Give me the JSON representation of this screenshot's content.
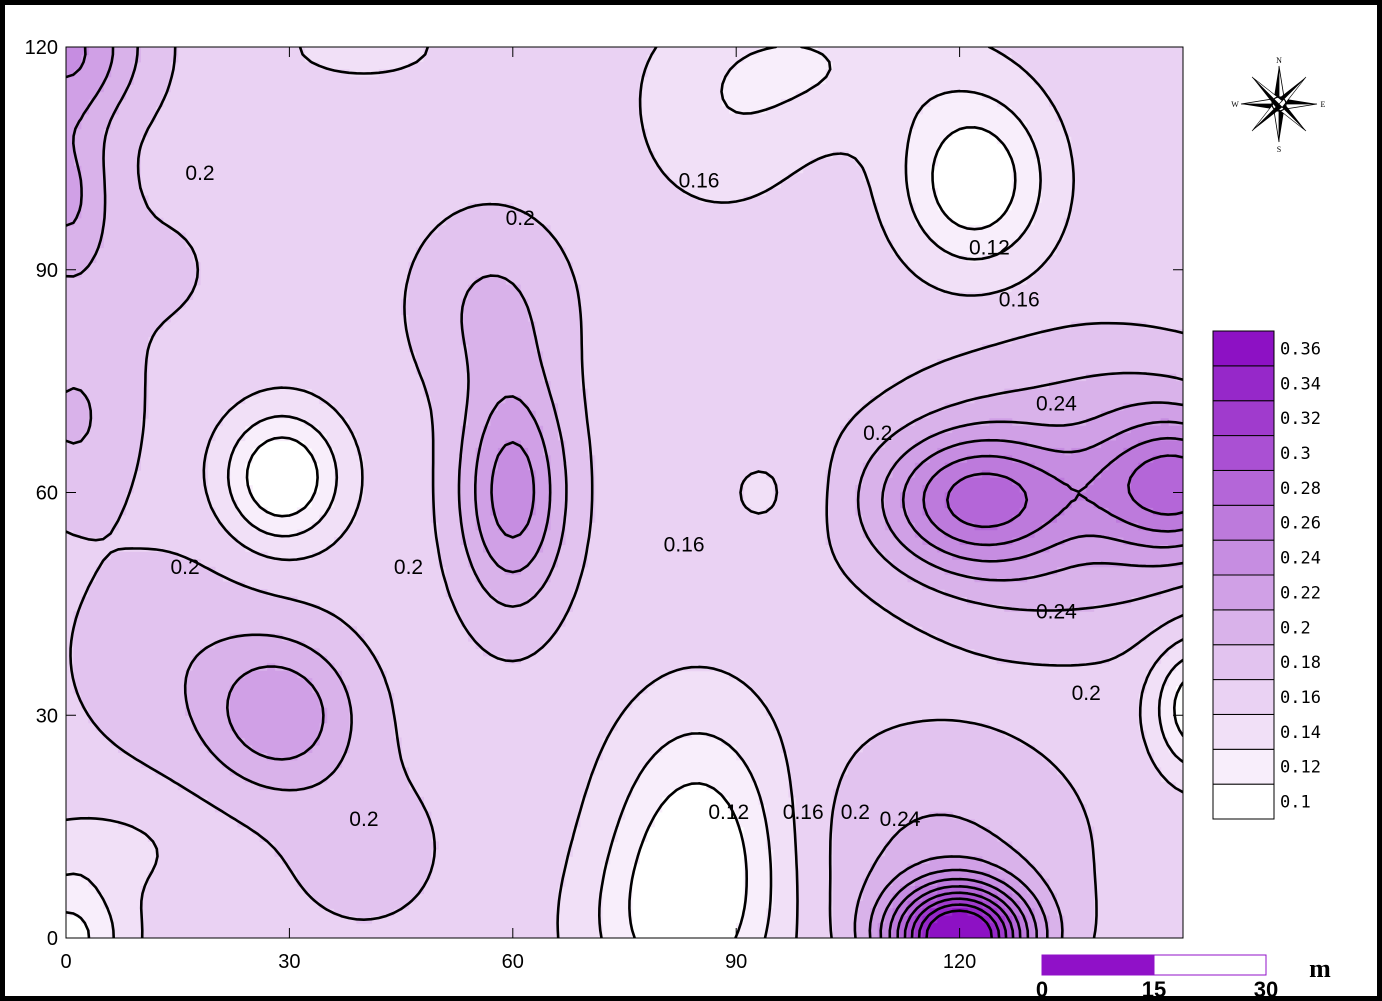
{
  "chart_data": {
    "type": "contour",
    "x_ticks": [
      "0",
      "30",
      "60",
      "90",
      "120"
    ],
    "y_ticks": [
      "0",
      "30",
      "60",
      "90",
      "120"
    ],
    "xlim": [
      0,
      150
    ],
    "ylim": [
      0,
      120
    ],
    "colorbar": {
      "levels": [
        "0.1",
        "0.12",
        "0.14",
        "0.16",
        "0.18",
        "0.2",
        "0.22",
        "0.24",
        "0.26",
        "0.28",
        "0.3",
        "0.32",
        "0.34",
        "0.36"
      ],
      "colors": [
        "#ffffff",
        "#f8eefb",
        "#f1e0f7",
        "#ead2f3",
        "#e2c3ef",
        "#d9b2ea",
        "#d0a0e6",
        "#c68de1",
        "#bd7adc",
        "#b466d8",
        "#aa50d3",
        "#a03bcd",
        "#9628c9",
        "#8d11c4"
      ]
    },
    "contour_labels": [
      {
        "text": "0.2",
        "x": 18,
        "y": 103
      },
      {
        "text": "0.2",
        "x": 61,
        "y": 97
      },
      {
        "text": "0.16",
        "x": 85,
        "y": 102
      },
      {
        "text": "0.12",
        "x": 124,
        "y": 93
      },
      {
        "text": "0.16",
        "x": 128,
        "y": 86
      },
      {
        "text": "0.24",
        "x": 133,
        "y": 72
      },
      {
        "text": "0.2",
        "x": 109,
        "y": 68
      },
      {
        "text": "0.2",
        "x": 16,
        "y": 50
      },
      {
        "text": "0.2",
        "x": 46,
        "y": 50
      },
      {
        "text": "0.16",
        "x": 83,
        "y": 53
      },
      {
        "text": "0.24",
        "x": 133,
        "y": 44
      },
      {
        "text": "0.2",
        "x": 137,
        "y": 33
      },
      {
        "text": "0.2",
        "x": 40,
        "y": 16
      },
      {
        "text": "0.12",
        "x": 89,
        "y": 17
      },
      {
        "text": "0.16",
        "x": 99,
        "y": 17
      },
      {
        "text": "0.2",
        "x": 106,
        "y": 17
      },
      {
        "text": "0.24",
        "x": 112,
        "y": 16
      }
    ]
  },
  "scale_bar": {
    "labels": [
      "0",
      "15",
      "30"
    ],
    "unit": "m",
    "color": "#9011c8"
  },
  "compass": {
    "N": "N",
    "S": "S",
    "E": "E",
    "W": "W"
  }
}
